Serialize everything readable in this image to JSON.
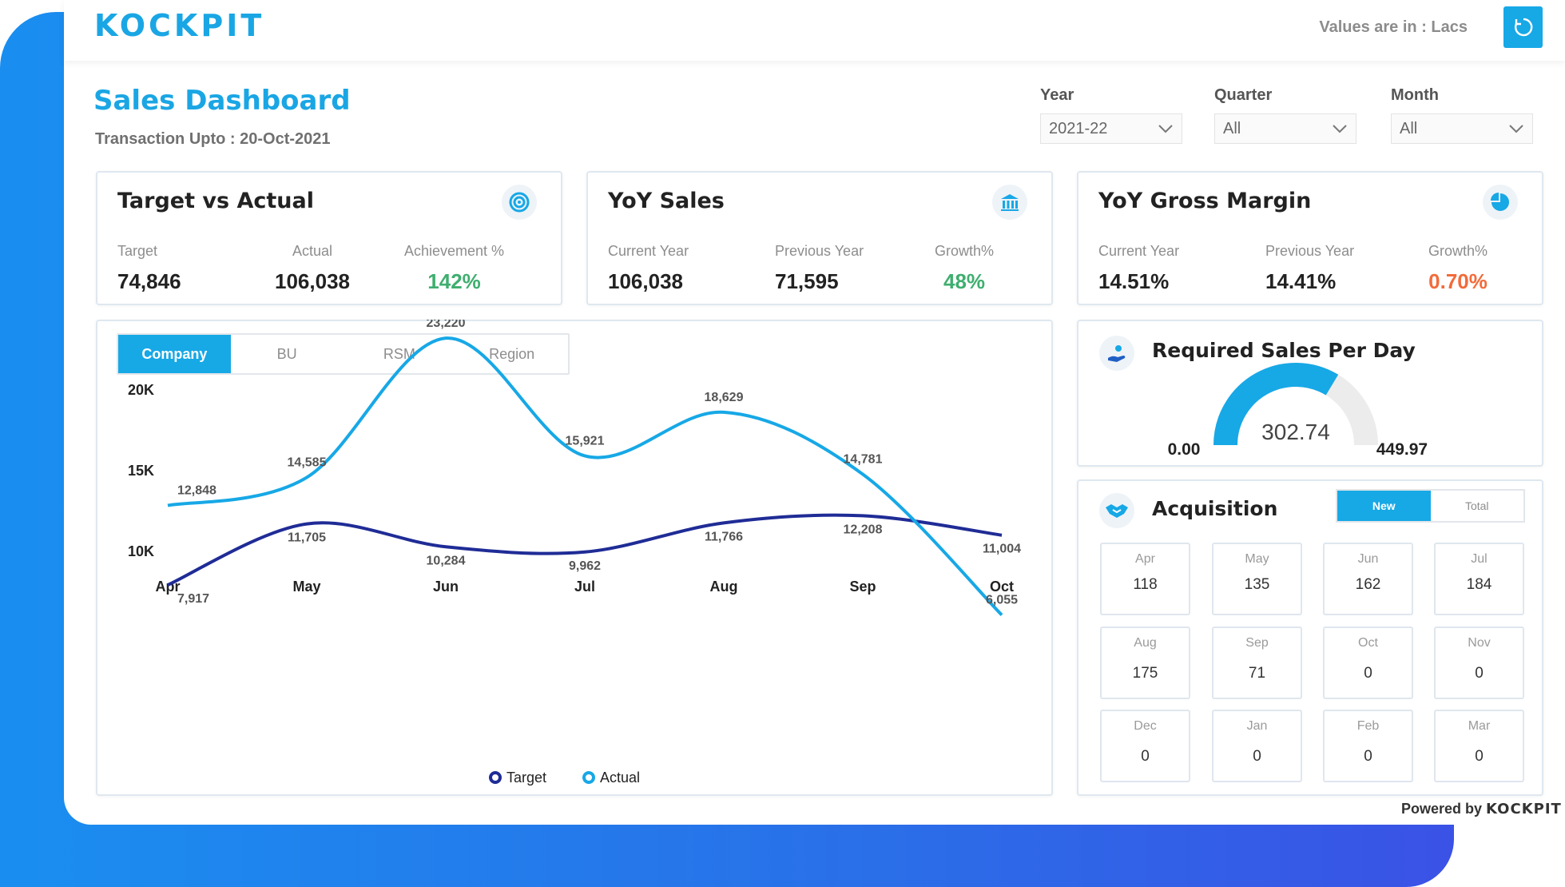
{
  "header": {
    "logo": "KOCKPIT",
    "values_note": "Values are in : Lacs"
  },
  "page": {
    "title": "Sales Dashboard",
    "subtitle": "Transaction Upto : 20-Oct-2021"
  },
  "filters": [
    {
      "label": "Year",
      "value": "2021-22"
    },
    {
      "label": "Quarter",
      "value": "All"
    },
    {
      "label": "Month",
      "value": "All"
    }
  ],
  "kpis": {
    "target_actual": {
      "title": "Target vs Actual",
      "icon": "target-icon",
      "labels": [
        "Target",
        "Actual",
        "Achievement %"
      ],
      "values": [
        "74,846",
        "106,038",
        "142%"
      ]
    },
    "yoy_sales": {
      "title": "YoY Sales",
      "icon": "bank-icon",
      "labels": [
        "Current Year",
        "Previous Year",
        "Growth%"
      ],
      "values": [
        "106,038",
        "71,595",
        "48%"
      ]
    },
    "yoy_margin": {
      "title": "YoY Gross Margin",
      "icon": "pie-icon",
      "labels": [
        "Current Year",
        "Previous Year",
        "Growth%"
      ],
      "values": [
        "14.51%",
        "14.41%",
        "0.70%"
      ]
    }
  },
  "colors": {
    "accent": "#17a8e6",
    "target_series": "#1f2c96",
    "actual_series": "#17a8e6",
    "positive": "#3fae6f",
    "negative": "#f26b3a"
  },
  "chart_tabs": [
    "Company",
    "BU",
    "RSM",
    "Region"
  ],
  "chart_data": {
    "type": "line",
    "x": [
      "Apr",
      "May",
      "Jun",
      "Jul",
      "Aug",
      "Sep",
      "Oct"
    ],
    "y_ticks": [
      "20K",
      "15K",
      "10K"
    ],
    "y_tick_values": [
      20000,
      15000,
      10000
    ],
    "ylim": [
      3500,
      27000
    ],
    "series": [
      {
        "name": "Target",
        "values": [
          7917,
          11705,
          10284,
          9962,
          11766,
          12208,
          11004
        ],
        "labels": [
          "7,917",
          "11,705",
          "10,284",
          "9,962",
          "11,766",
          "12,208",
          "11,004"
        ]
      },
      {
        "name": "Actual",
        "values": [
          12848,
          14585,
          23220,
          15921,
          18629,
          14781,
          6055
        ],
        "labels": [
          "12,848",
          "14,585",
          "23,220",
          "15,921",
          "18,629",
          "14,781",
          "6,055"
        ]
      }
    ],
    "legend": "bottom",
    "grid": false
  },
  "required_sales": {
    "title": "Required Sales Per Day",
    "icon": "person-hand-icon",
    "min_label": "0.00",
    "max_label": "449.97",
    "value_label": "302.74",
    "min": 0,
    "max": 449.97,
    "value": 302.74
  },
  "acquisition": {
    "title": "Acquisition",
    "icon": "handshake-icon",
    "tabs": [
      "New",
      "Total"
    ],
    "months": [
      {
        "month": "Apr",
        "value": "118"
      },
      {
        "month": "May",
        "value": "135"
      },
      {
        "month": "Jun",
        "value": "162"
      },
      {
        "month": "Jul",
        "value": "184"
      },
      {
        "month": "Aug",
        "value": "175"
      },
      {
        "month": "Sep",
        "value": "71"
      },
      {
        "month": "Oct",
        "value": "0"
      },
      {
        "month": "Nov",
        "value": "0"
      },
      {
        "month": "Dec",
        "value": "0"
      },
      {
        "month": "Jan",
        "value": "0"
      },
      {
        "month": "Feb",
        "value": "0"
      },
      {
        "month": "Mar",
        "value": "0"
      }
    ]
  },
  "footer": {
    "powered_prefix": "Powered by",
    "powered_brand": "KOCKPIT"
  }
}
